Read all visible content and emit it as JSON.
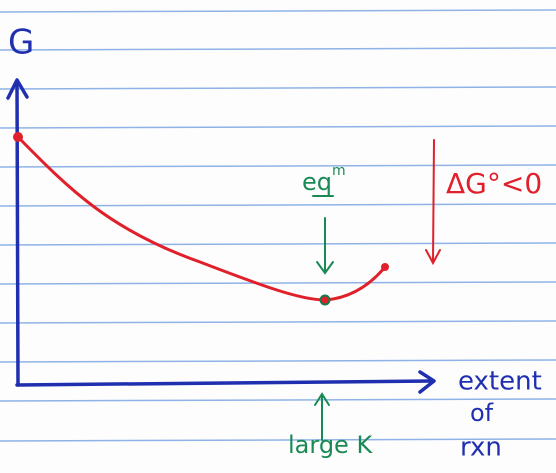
{
  "axis_label_y": "G",
  "equilibrium_label": {
    "base": "eq",
    "sup": "m"
  },
  "delta_g_label": "ΔG°<0",
  "axis_label_x": [
    "extent",
    "of",
    "rxn"
  ],
  "bottom_label": "large K"
}
